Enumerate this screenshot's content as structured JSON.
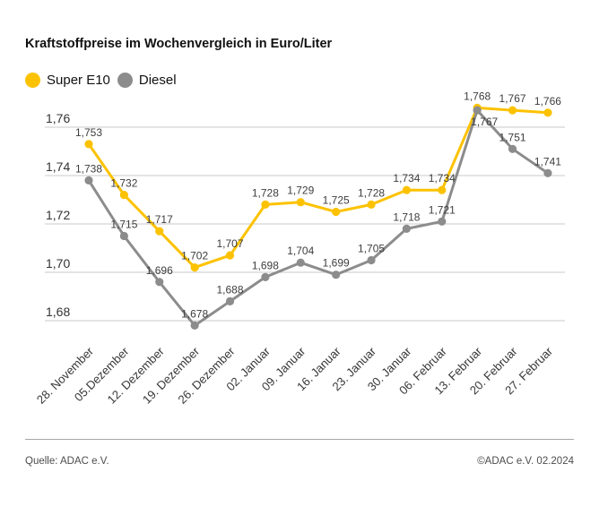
{
  "title": "Kraftstoffpreise im Wochenvergleich in Euro/Liter",
  "footer": {
    "source": "Quelle: ADAC e.V.",
    "copyright": "©ADAC e.V. 02.2024"
  },
  "colors": {
    "super_e10": "#FCC200",
    "diesel": "#8C8C8C",
    "gridline": "#C8C8C8",
    "axis_text": "#333333",
    "value_label": "#3D3D3D"
  },
  "chart_data": {
    "type": "line",
    "title": "Kraftstoffpreise im Wochenvergleich in Euro/Liter",
    "unit": "Euro/Liter",
    "categories": [
      "28. November",
      "05.Dezember",
      "12. Dezember",
      "19. Dezember",
      "26. Dezember",
      "02. Januar",
      "09. Januar",
      "16. Januar",
      "23. Januar",
      "30. Januar",
      "06. Februar",
      "13. Februar",
      "20. Februar",
      "27. Februar"
    ],
    "series": [
      {
        "name": "Super E10",
        "color": "#FCC200",
        "values": [
          1.753,
          1.732,
          1.717,
          1.702,
          1.707,
          1.728,
          1.729,
          1.725,
          1.728,
          1.734,
          1.734,
          1.768,
          1.767,
          1.766
        ],
        "label_below_indices": []
      },
      {
        "name": "Diesel",
        "color": "#8C8C8C",
        "values": [
          1.738,
          1.715,
          1.696,
          1.678,
          1.688,
          1.698,
          1.704,
          1.699,
          1.705,
          1.718,
          1.721,
          1.767,
          1.751,
          1.741
        ],
        "label_below_indices": [
          11
        ]
      }
    ],
    "y_ticks": [
      1.68,
      1.7,
      1.72,
      1.74,
      1.76
    ],
    "ylim": [
      1.67,
      1.78
    ],
    "grid": "horizontal",
    "legend_position": "top-left",
    "decimal_separator": ",",
    "x_label_rotation_deg": -45,
    "data_labels": true
  }
}
